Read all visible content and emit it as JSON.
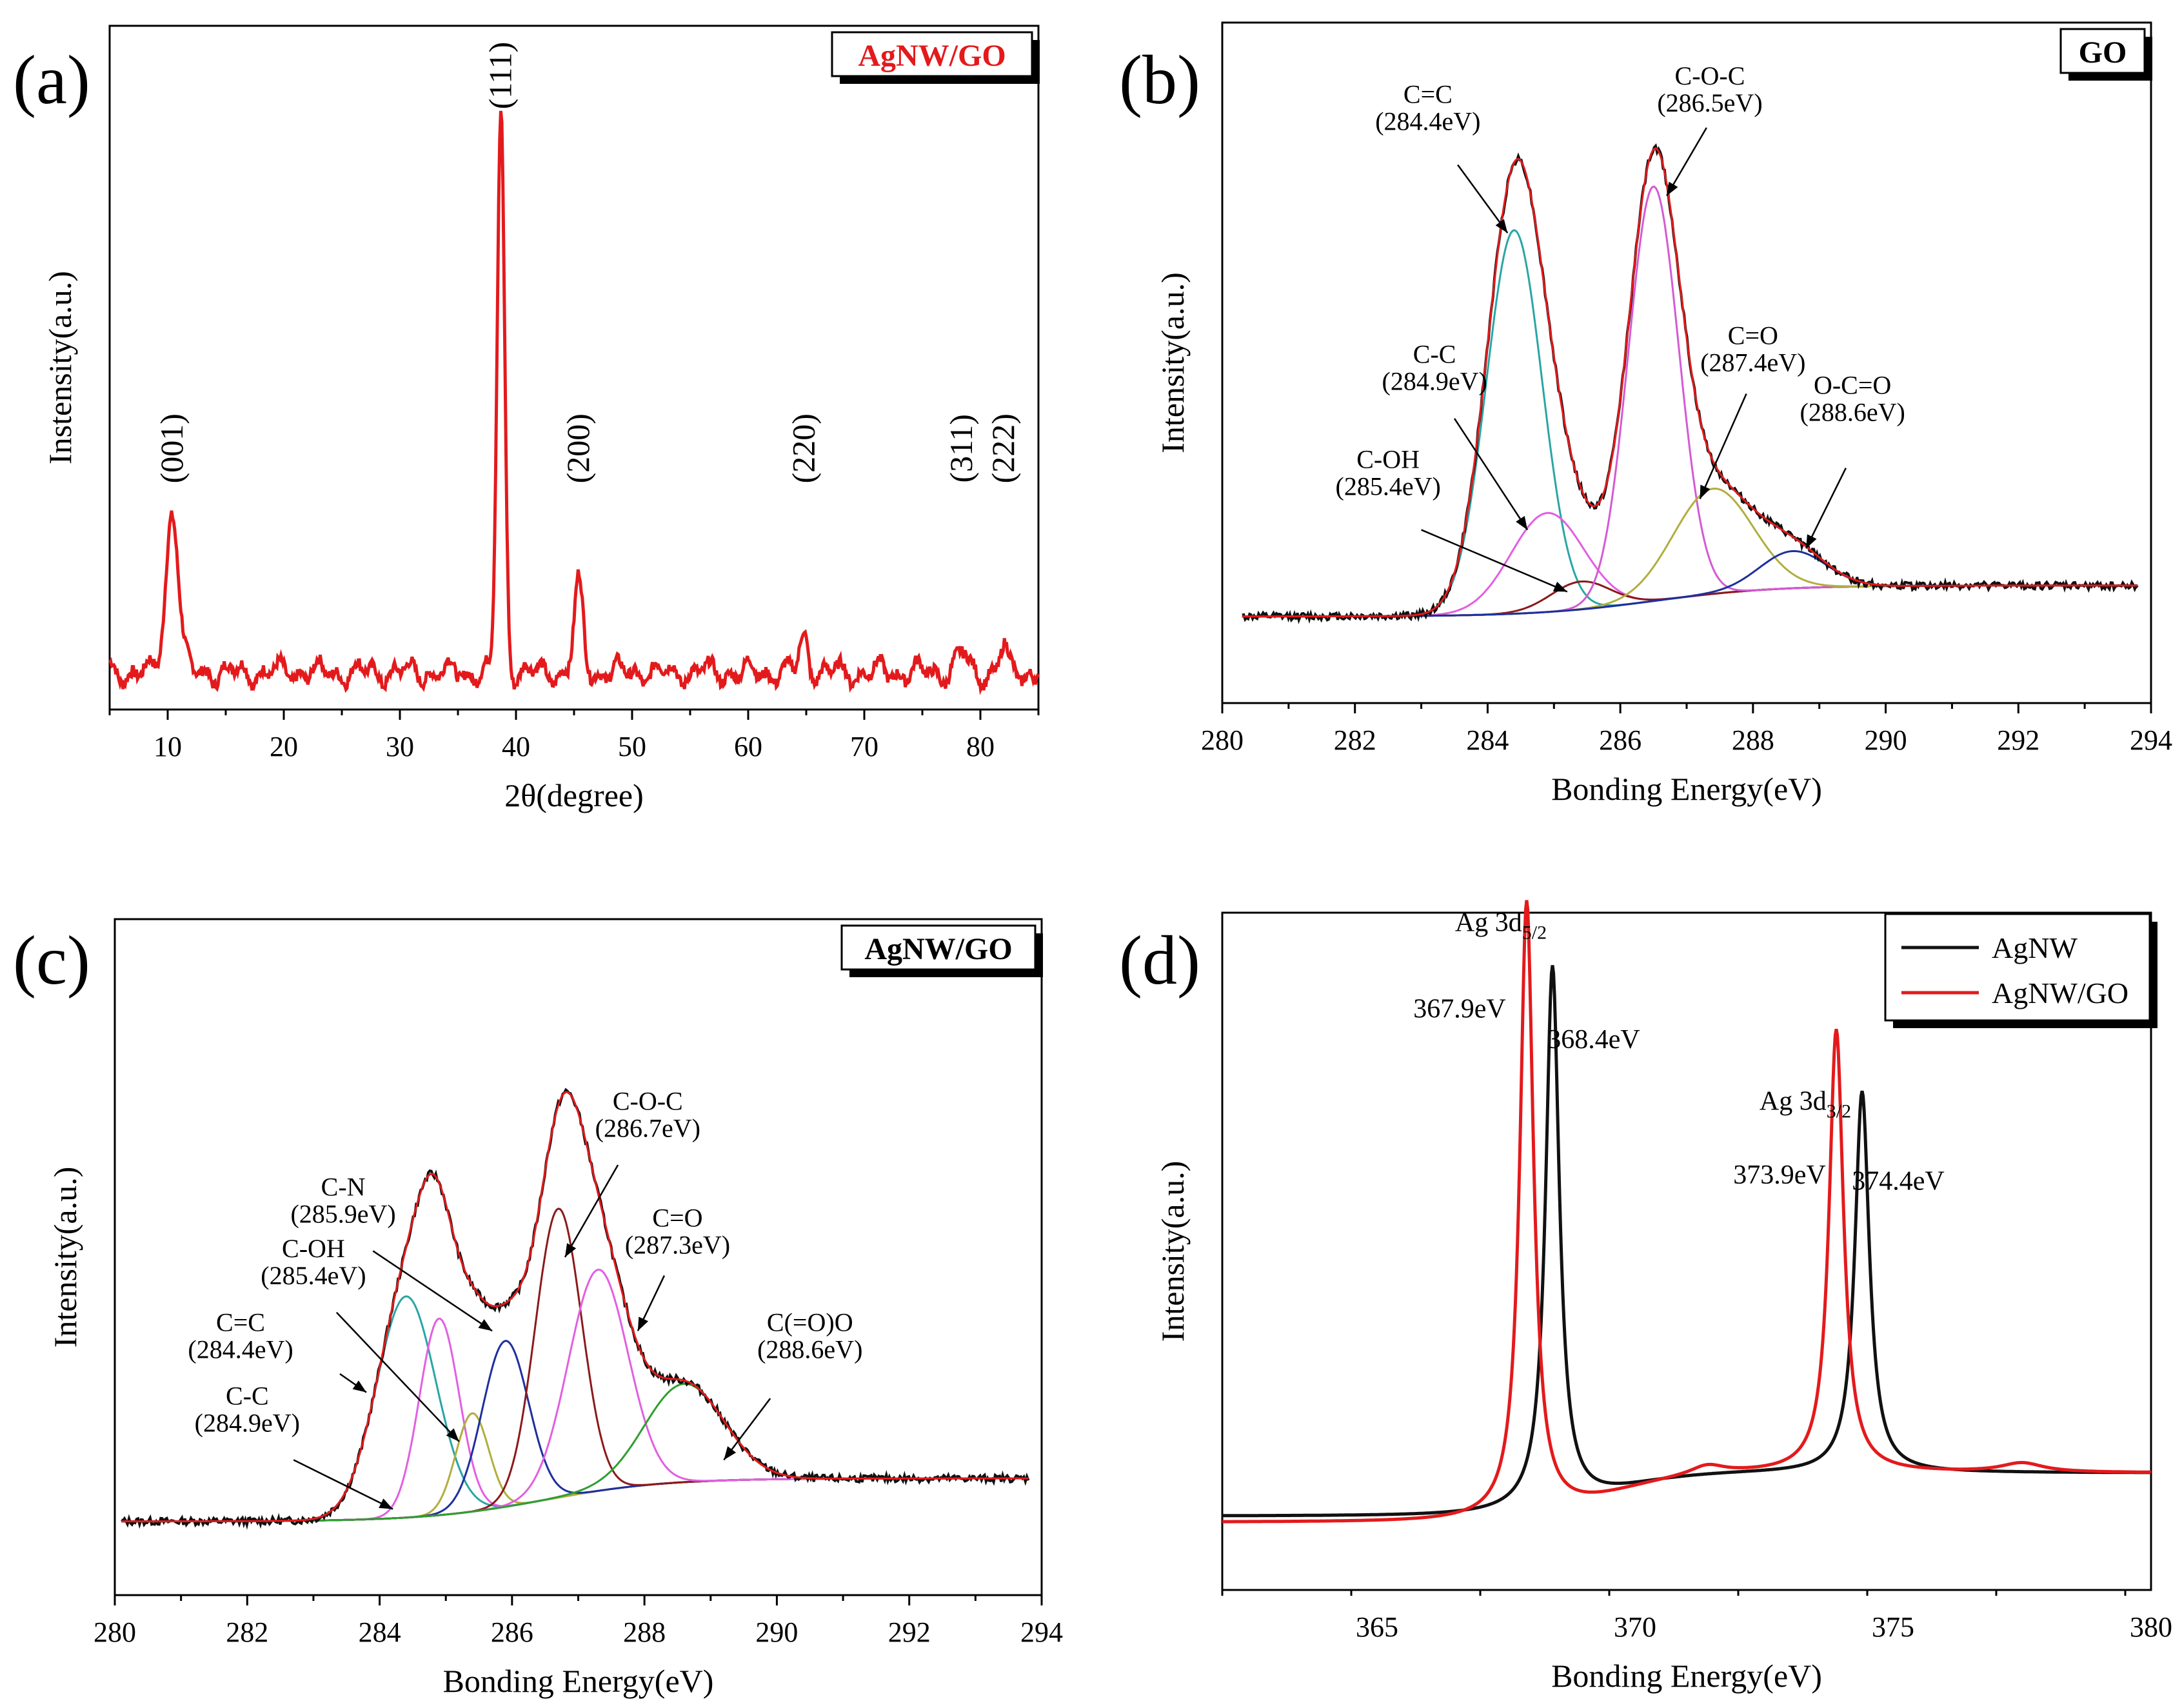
{
  "figure": {
    "panels": [
      "a",
      "b",
      "c",
      "d"
    ]
  },
  "colors": {
    "axis": "#000000",
    "red": "#e31a1c",
    "black": "#111111",
    "cyan": "#2aa5a5",
    "magenta": "#e25fe2",
    "violet": "#d45ad4",
    "olive": "#b1ae3e",
    "blue": "#1d2f9e",
    "darkred": "#8b1a1a",
    "green": "#2f9e2f",
    "baseline": "#3a3a8a"
  },
  "chart_data": [
    {
      "panel": "a",
      "label": "(a)",
      "type": "line",
      "xlabel": "2θ(degree)",
      "ylabel": "Instensity(a.u.)",
      "xlim": [
        5,
        85
      ],
      "ylim": [
        0,
        1.1
      ],
      "xticks": [
        10,
        20,
        30,
        40,
        50,
        60,
        70,
        80
      ],
      "legend": {
        "text": "AgNW/GO",
        "color": "red",
        "position": "top-right"
      },
      "series": [
        {
          "name": "AgNW/GO",
          "color": "red",
          "baseline": 0.06,
          "peaks": [
            {
              "x": 10.4,
              "h": 0.26,
              "w": 0.55
            },
            {
              "x": 38.7,
              "h": 0.9,
              "w": 0.32
            },
            {
              "x": 45.4,
              "h": 0.14,
              "w": 0.38
            },
            {
              "x": 64.8,
              "h": 0.06,
              "w": 0.35
            },
            {
              "x": 78.4,
              "h": 0.03,
              "w": 0.45
            },
            {
              "x": 82.0,
              "h": 0.04,
              "w": 0.3
            }
          ]
        }
      ],
      "annotations": [
        {
          "text": "(001)",
          "x": 10.4,
          "y": 0.42,
          "rotate": -90
        },
        {
          "text": "(111)",
          "x": 38.7,
          "y": 1.02,
          "rotate": -90
        },
        {
          "text": "(200)",
          "x": 45.4,
          "y": 0.42,
          "rotate": -90
        },
        {
          "text": "(220)",
          "x": 64.8,
          "y": 0.42,
          "rotate": -90
        },
        {
          "text": "(311)",
          "x": 78.4,
          "y": 0.42,
          "rotate": -90
        },
        {
          "text": "(222)",
          "x": 82.0,
          "y": 0.42,
          "rotate": -90
        }
      ]
    },
    {
      "panel": "b",
      "label": "(b)",
      "type": "line",
      "xlabel": "Bonding Energy(eV)",
      "ylabel": "Intensity(a.u.)",
      "xlim": [
        280,
        294
      ],
      "ylim": [
        0,
        1.1
      ],
      "xticks": [
        280,
        282,
        284,
        286,
        288,
        290,
        292,
        294
      ],
      "legend": {
        "text": "GO",
        "color": "axis",
        "position": "top-right"
      },
      "background": {
        "x0": 280.3,
        "y0": 0.14,
        "x1": 293.8,
        "y1": 0.19
      },
      "components": [
        {
          "name": "C=C",
          "center": 284.4,
          "height": 0.62,
          "sigma": 0.42,
          "color": "cyan"
        },
        {
          "name": "C-C",
          "center": 284.9,
          "height": 0.16,
          "sigma": 0.55,
          "color": "magenta"
        },
        {
          "name": "C-OH",
          "center": 285.4,
          "height": 0.045,
          "sigma": 0.45,
          "color": "darkred"
        },
        {
          "name": "C-O-C",
          "center": 286.5,
          "height": 0.67,
          "sigma": 0.38,
          "color": "violet"
        },
        {
          "name": "C=O",
          "center": 287.4,
          "height": 0.17,
          "sigma": 0.6,
          "color": "olive"
        },
        {
          "name": "O-C=O",
          "center": 288.6,
          "height": 0.06,
          "sigma": 0.5,
          "color": "blue"
        }
      ],
      "envelope_colors": [
        "black",
        "red"
      ],
      "annotations": [
        {
          "lines": [
            "C=C",
            "(284.4eV)"
          ],
          "tx": 283.1,
          "ty": 0.97,
          "ax": 283.55,
          "ay": 0.87,
          "hx": 284.3,
          "hy": 0.76
        },
        {
          "lines": [
            "C-O-C",
            "(286.5eV)"
          ],
          "tx": 287.35,
          "ty": 1.0,
          "ax": 287.3,
          "ay": 0.93,
          "hx": 286.7,
          "hy": 0.82
        },
        {
          "lines": [
            "C-C",
            "(284.9eV)"
          ],
          "tx": 283.2,
          "ty": 0.55,
          "ax": 283.5,
          "ay": 0.46,
          "hx": 284.6,
          "hy": 0.28
        },
        {
          "lines": [
            "C-OH",
            "(285.4eV)"
          ],
          "tx": 282.5,
          "ty": 0.38,
          "ax": 283.0,
          "ay": 0.28,
          "hx": 285.2,
          "hy": 0.18
        },
        {
          "lines": [
            "C=O",
            "(287.4eV)"
          ],
          "tx": 288.0,
          "ty": 0.58,
          "ax": 287.9,
          "ay": 0.5,
          "hx": 287.2,
          "hy": 0.33
        },
        {
          "lines": [
            "O-C=O",
            "(288.6eV)"
          ],
          "tx": 289.5,
          "ty": 0.5,
          "ax": 289.4,
          "ay": 0.38,
          "hx": 288.8,
          "hy": 0.25
        }
      ]
    },
    {
      "panel": "c",
      "label": "(c)",
      "type": "line",
      "xlabel": "Bonding Energy(eV)",
      "ylabel": "Intensity(a.u.)",
      "xlim": [
        280,
        294
      ],
      "ylim": [
        0,
        1.1
      ],
      "xticks": [
        280,
        282,
        284,
        286,
        288,
        290,
        292,
        294
      ],
      "legend": {
        "text": "AgNW/GO",
        "color": "axis",
        "position": "top-right"
      },
      "background": {
        "x0": 280.1,
        "y0": 0.12,
        "x1": 293.8,
        "y1": 0.19
      },
      "components": [
        {
          "name": "C=C",
          "center": 284.4,
          "height": 0.36,
          "sigma": 0.45,
          "color": "cyan"
        },
        {
          "name": "C-C",
          "center": 284.9,
          "height": 0.32,
          "sigma": 0.3,
          "color": "magenta"
        },
        {
          "name": "C-OH",
          "center": 285.4,
          "height": 0.16,
          "sigma": 0.25,
          "color": "olive"
        },
        {
          "name": "C-N",
          "center": 285.9,
          "height": 0.27,
          "sigma": 0.35,
          "color": "blue"
        },
        {
          "name": "C-O-C",
          "center": 286.7,
          "height": 0.47,
          "sigma": 0.35,
          "color": "darkred"
        },
        {
          "name": "C=O",
          "center": 287.3,
          "height": 0.36,
          "sigma": 0.45,
          "color": "magenta"
        },
        {
          "name": "C(=O)O",
          "center": 288.6,
          "height": 0.16,
          "sigma": 0.6,
          "color": "green"
        }
      ],
      "envelope_colors": [
        "black",
        "red"
      ],
      "annotations": [
        {
          "lines": [
            "C-N",
            "(285.9eV)"
          ],
          "tx": 283.45,
          "ty": 0.65,
          "ax": 283.9,
          "ay": 0.56,
          "hx": 285.7,
          "hy": 0.43
        },
        {
          "lines": [
            "C-OH",
            "(285.4eV)"
          ],
          "tx": 283.0,
          "ty": 0.55,
          "ax": 283.35,
          "ay": 0.46,
          "hx": 285.2,
          "hy": 0.25
        },
        {
          "lines": [
            "C=C",
            "(284.4eV)"
          ],
          "tx": 281.9,
          "ty": 0.43,
          "ax": 283.4,
          "ay": 0.36,
          "hx": 283.8,
          "hy": 0.33
        },
        {
          "lines": [
            "C-C",
            "(284.9eV)"
          ],
          "tx": 282.0,
          "ty": 0.31,
          "ax": 282.7,
          "ay": 0.22,
          "hx": 284.2,
          "hy": 0.14
        },
        {
          "lines": [
            "C-O-C",
            "(286.7eV)"
          ],
          "tx": 288.05,
          "ty": 0.79,
          "ax": 287.6,
          "ay": 0.7,
          "hx": 286.8,
          "hy": 0.55
        },
        {
          "lines": [
            "C=O",
            "(287.3eV)"
          ],
          "tx": 288.5,
          "ty": 0.6,
          "ax": 288.3,
          "ay": 0.52,
          "hx": 287.9,
          "hy": 0.43
        },
        {
          "lines": [
            "C(=O)O",
            "(288.6eV)"
          ],
          "tx": 290.5,
          "ty": 0.43,
          "ax": 289.9,
          "ay": 0.32,
          "hx": 289.2,
          "hy": 0.22
        }
      ]
    },
    {
      "panel": "d",
      "label": "(d)",
      "type": "line",
      "xlabel": "Bonding Energy(eV)",
      "ylabel": "Intensity(a.u.)",
      "xlim": [
        362,
        380
      ],
      "ylim": [
        0,
        1.1
      ],
      "xticks": [
        365,
        370,
        375,
        380
      ],
      "legend_entries": [
        {
          "text": "AgNW",
          "color": "black"
        },
        {
          "text": "AgNW/GO",
          "color": "red"
        }
      ],
      "legend_position": "top-right",
      "series": [
        {
          "name": "AgNW",
          "color": "black",
          "baseline": [
            0.12,
            0.19
          ],
          "peaks": [
            {
              "x": 368.4,
              "h": 0.88,
              "g": 0.16
            },
            {
              "x": 374.4,
              "h": 0.62,
              "g": 0.17
            }
          ]
        },
        {
          "name": "AgNW/GO",
          "color": "red",
          "baseline": [
            0.11,
            0.19
          ],
          "peaks": [
            {
              "x": 367.9,
              "h": 1.0,
              "g": 0.16
            },
            {
              "x": 373.9,
              "h": 0.72,
              "g": 0.17
            },
            {
              "x": 371.4,
              "h": 0.015,
              "g": 0.4
            },
            {
              "x": 377.5,
              "h": 0.015,
              "g": 0.5
            }
          ]
        }
      ],
      "annotations": [
        {
          "text": "Ag 3d",
          "sub": "5/2",
          "x": 367.4,
          "y": 1.07
        },
        {
          "text": "367.9eV",
          "x": 366.6,
          "y": 0.93
        },
        {
          "text": "368.4eV",
          "x": 369.2,
          "y": 0.88
        },
        {
          "text": "Ag 3d",
          "sub": "3/2",
          "x": 373.3,
          "y": 0.78
        },
        {
          "text": "373.9eV",
          "x": 372.8,
          "y": 0.66
        },
        {
          "text": "374.4eV",
          "x": 375.1,
          "y": 0.65
        }
      ]
    }
  ]
}
